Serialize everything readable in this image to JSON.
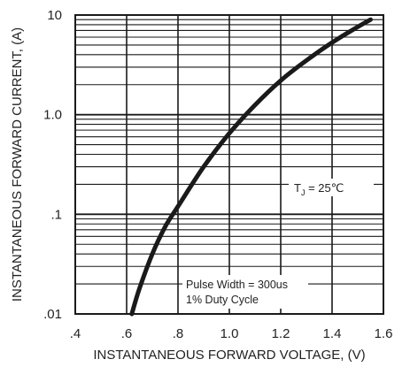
{
  "chart_data": {
    "type": "line",
    "xlabel": "INSTANTANEOUS FORWARD VOLTAGE, (V)",
    "ylabel": "INSTANTANEOUS FORWARD CURRENT, (A)",
    "xlim": [
      0.4,
      1.6
    ],
    "ylim": [
      0.01,
      10
    ],
    "y_scale": "log",
    "grid": true,
    "x_ticks": [
      0.4,
      0.6,
      0.8,
      1.0,
      1.2,
      1.4,
      1.6
    ],
    "x_tick_labels": [
      ".4",
      ".6",
      ".8",
      "1.0",
      "1.2",
      "1.4",
      "1.6"
    ],
    "y_ticks": [
      0.01,
      0.1,
      1,
      10
    ],
    "y_tick_labels": [
      ".01",
      ".1",
      "1.0",
      "10"
    ],
    "series": [
      {
        "x": [
          0.62,
          0.65,
          0.7,
          0.75,
          0.8,
          0.9,
          1.0,
          1.1,
          1.2,
          1.3,
          1.4,
          1.5,
          1.55
        ],
        "y": [
          0.01,
          0.018,
          0.04,
          0.075,
          0.12,
          0.3,
          0.65,
          1.25,
          2.2,
          3.5,
          5.3,
          7.6,
          9.0
        ]
      }
    ],
    "annotations": {
      "tj_main": "T",
      "tj_sub": "J",
      "tj_rest": " = 25℃",
      "pulse_line1": "Pulse Width = 300us",
      "pulse_line2": "1% Duty Cycle"
    },
    "color": "#1a1a1a"
  }
}
